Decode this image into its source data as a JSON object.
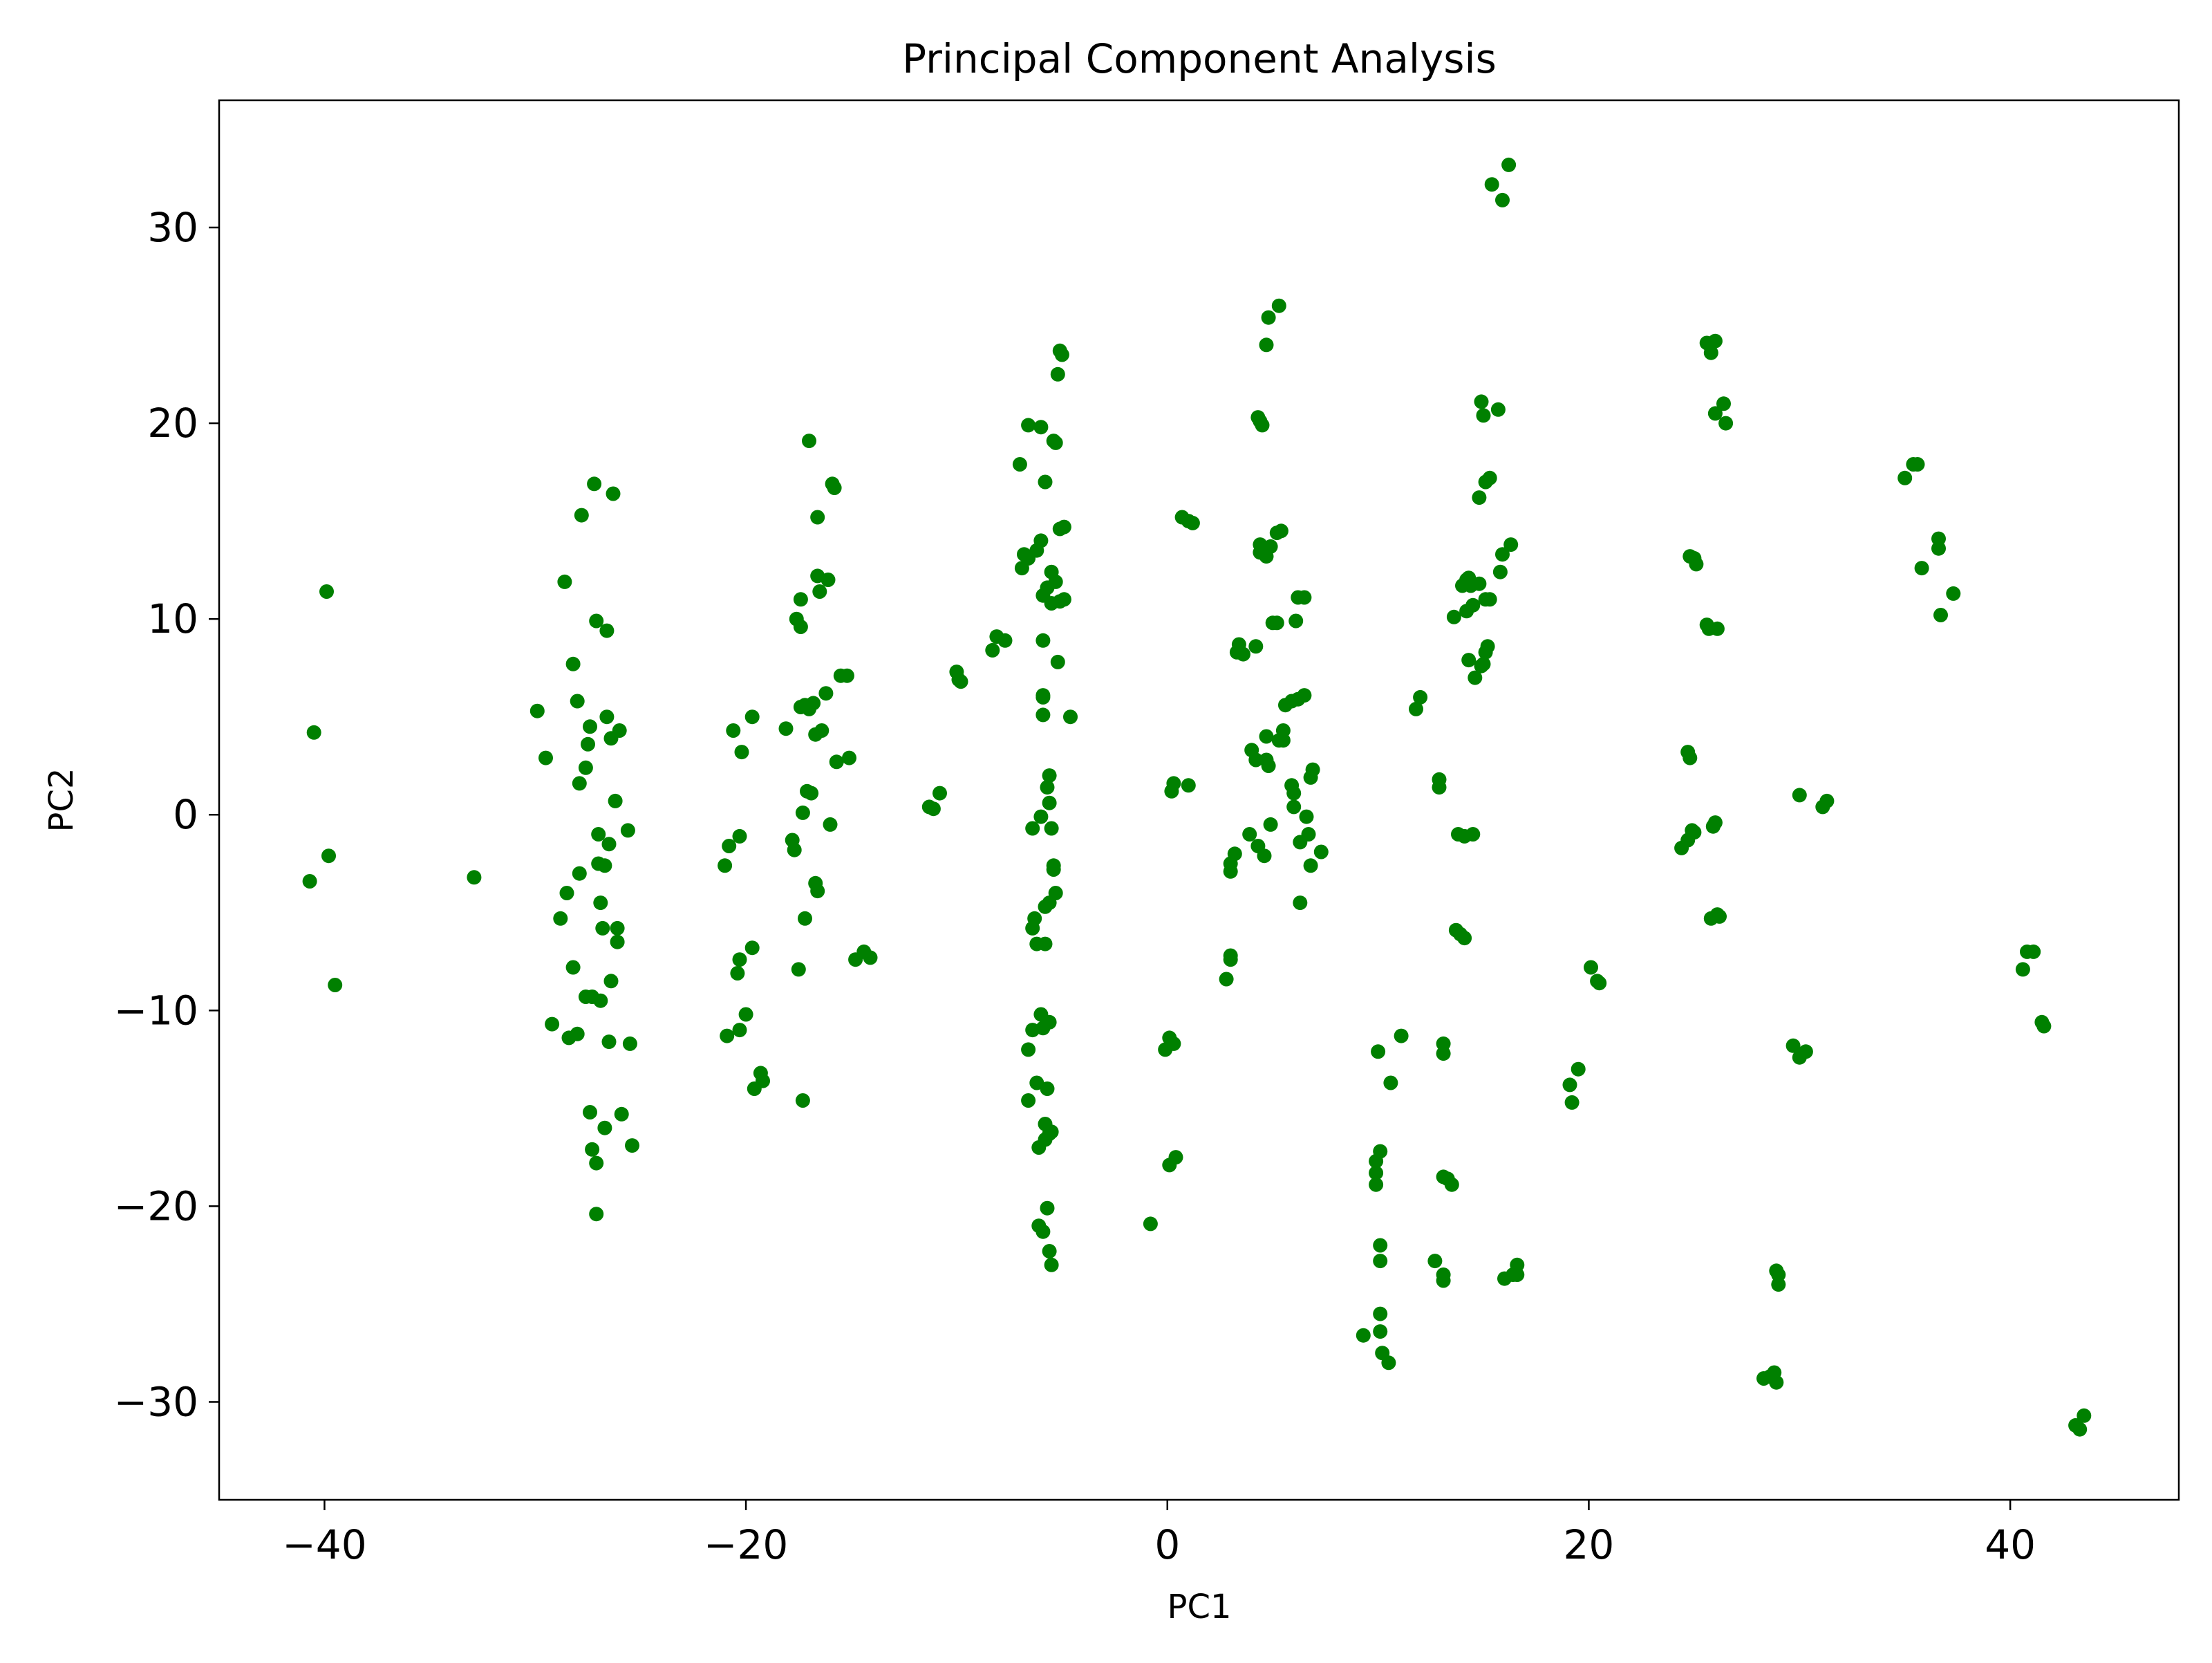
{
  "chart_data": {
    "type": "scatter",
    "title": "Principal Component Analysis",
    "xlabel": "PC1",
    "ylabel": "PC2",
    "xlim": [
      -45,
      48
    ],
    "ylim": [
      -35,
      36.5
    ],
    "xticks": [
      -40,
      -20,
      0,
      20,
      40
    ],
    "xtick_labels": [
      "−40",
      "−20",
      "0",
      "20",
      "40"
    ],
    "yticks": [
      -30,
      -20,
      -10,
      0,
      10,
      20,
      30
    ],
    "ytick_labels": [
      "−30",
      "−20",
      "−10",
      "0",
      "10",
      "20",
      "30"
    ],
    "grid": false,
    "legend": false,
    "marker_color": "#008000",
    "points": [
      [
        -40.7,
        -3.4
      ],
      [
        -40.5,
        4.2
      ],
      [
        -39.9,
        11.4
      ],
      [
        -39.8,
        -2.1
      ],
      [
        -39.5,
        -8.7
      ],
      [
        -32.9,
        -3.2
      ],
      [
        -29.9,
        5.3
      ],
      [
        -29.5,
        2.9
      ],
      [
        -29.2,
        -10.7
      ],
      [
        -28.8,
        -5.3
      ],
      [
        -28.6,
        11.9
      ],
      [
        -28.5,
        -4.0
      ],
      [
        -28.4,
        -11.4
      ],
      [
        -28.2,
        -7.8
      ],
      [
        -28.2,
        7.7
      ],
      [
        -28.0,
        -11.2
      ],
      [
        -28.0,
        5.8
      ],
      [
        -27.9,
        1.6
      ],
      [
        -27.9,
        -3.0
      ],
      [
        -27.8,
        15.3
      ],
      [
        -27.6,
        -9.3
      ],
      [
        -27.6,
        2.4
      ],
      [
        -27.5,
        3.6
      ],
      [
        -27.4,
        -15.2
      ],
      [
        -27.4,
        4.5
      ],
      [
        -27.3,
        -17.1
      ],
      [
        -27.3,
        -9.3
      ],
      [
        -27.2,
        16.9
      ],
      [
        -27.1,
        -17.8
      ],
      [
        -27.1,
        -20.4
      ],
      [
        -27.1,
        9.9
      ],
      [
        -27.0,
        -1.0
      ],
      [
        -27.0,
        -2.5
      ],
      [
        -26.9,
        -4.5
      ],
      [
        -26.9,
        -9.5
      ],
      [
        -26.8,
        -5.8
      ],
      [
        -26.7,
        -2.6
      ],
      [
        -26.7,
        -16.0
      ],
      [
        -26.6,
        9.4
      ],
      [
        -26.6,
        5.0
      ],
      [
        -26.5,
        -11.6
      ],
      [
        -26.5,
        -1.5
      ],
      [
        -26.4,
        -8.5
      ],
      [
        -26.4,
        3.9
      ],
      [
        -26.3,
        16.4
      ],
      [
        -26.2,
        0.7
      ],
      [
        -26.1,
        -5.8
      ],
      [
        -26.1,
        -6.5
      ],
      [
        -26.0,
        4.3
      ],
      [
        -25.9,
        -15.3
      ],
      [
        -25.6,
        -0.8
      ],
      [
        -25.5,
        -11.7
      ],
      [
        -25.4,
        -16.9
      ],
      [
        -21.0,
        -2.6
      ],
      [
        -20.9,
        -11.3
      ],
      [
        -20.8,
        -1.6
      ],
      [
        -20.6,
        4.3
      ],
      [
        -20.4,
        -8.1
      ],
      [
        -20.3,
        -11.0
      ],
      [
        -20.3,
        -7.4
      ],
      [
        -20.3,
        -1.1
      ],
      [
        -20.2,
        3.2
      ],
      [
        -20.0,
        -10.2
      ],
      [
        -19.7,
        -6.8
      ],
      [
        -19.7,
        5.0
      ],
      [
        -19.6,
        -14.0
      ],
      [
        -19.3,
        -13.2
      ],
      [
        -19.2,
        -13.6
      ],
      [
        -18.1,
        4.4
      ],
      [
        -17.8,
        -1.3
      ],
      [
        -17.7,
        -1.8
      ],
      [
        -17.6,
        10.0
      ],
      [
        -17.5,
        -7.9
      ],
      [
        -17.4,
        11.0
      ],
      [
        -17.4,
        9.6
      ],
      [
        -17.4,
        5.5
      ],
      [
        -17.3,
        0.1
      ],
      [
        -17.3,
        -14.6
      ],
      [
        -17.2,
        -5.3
      ],
      [
        -17.2,
        5.6
      ],
      [
        -17.1,
        1.2
      ],
      [
        -17.0,
        5.4
      ],
      [
        -17.0,
        19.1
      ],
      [
        -16.9,
        1.1
      ],
      [
        -16.8,
        5.7
      ],
      [
        -16.7,
        -3.5
      ],
      [
        -16.7,
        4.1
      ],
      [
        -16.6,
        12.2
      ],
      [
        -16.6,
        -3.9
      ],
      [
        -16.6,
        15.2
      ],
      [
        -16.5,
        11.4
      ],
      [
        -16.4,
        4.3
      ],
      [
        -16.2,
        6.2
      ],
      [
        -16.1,
        12.0
      ],
      [
        -16.0,
        -0.5
      ],
      [
        -15.9,
        16.9
      ],
      [
        -15.8,
        16.7
      ],
      [
        -15.7,
        2.7
      ],
      [
        -15.5,
        7.1
      ],
      [
        -15.2,
        7.1
      ],
      [
        -15.1,
        2.9
      ],
      [
        -14.8,
        -7.4
      ],
      [
        -14.4,
        -7.0
      ],
      [
        -14.1,
        -7.3
      ],
      [
        -11.3,
        0.4
      ],
      [
        -11.1,
        0.3
      ],
      [
        -10.8,
        1.1
      ],
      [
        -10.0,
        7.3
      ],
      [
        -9.9,
        6.9
      ],
      [
        -9.8,
        6.8
      ],
      [
        -8.3,
        8.4
      ],
      [
        -8.1,
        9.1
      ],
      [
        -7.7,
        8.9
      ],
      [
        -7.0,
        17.9
      ],
      [
        -6.9,
        12.6
      ],
      [
        -6.8,
        13.3
      ],
      [
        -6.6,
        13.1
      ],
      [
        -6.6,
        -12.0
      ],
      [
        -6.6,
        -14.6
      ],
      [
        -6.6,
        19.9
      ],
      [
        -6.4,
        -11.0
      ],
      [
        -6.4,
        -5.8
      ],
      [
        -6.4,
        -0.7
      ],
      [
        -6.3,
        -5.3
      ],
      [
        -6.2,
        -6.6
      ],
      [
        -6.2,
        13.5
      ],
      [
        -6.2,
        -13.7
      ],
      [
        -6.1,
        -21.0
      ],
      [
        -6.1,
        -17.0
      ],
      [
        -6.0,
        19.8
      ],
      [
        -6.0,
        -10.2
      ],
      [
        -6.0,
        14.0
      ],
      [
        -6.0,
        -0.1
      ],
      [
        -5.9,
        6.1
      ],
      [
        -5.9,
        11.2
      ],
      [
        -5.9,
        -21.3
      ],
      [
        -5.9,
        8.9
      ],
      [
        -5.9,
        6.0
      ],
      [
        -5.9,
        -10.9
      ],
      [
        -5.9,
        5.1
      ],
      [
        -5.8,
        -4.7
      ],
      [
        -5.8,
        -16.6
      ],
      [
        -5.8,
        -6.6
      ],
      [
        -5.8,
        17.0
      ],
      [
        -5.8,
        -15.8
      ],
      [
        -5.7,
        11.6
      ],
      [
        -5.7,
        -14.0
      ],
      [
        -5.7,
        1.4
      ],
      [
        -5.7,
        -20.1
      ],
      [
        -5.6,
        -10.6
      ],
      [
        -5.6,
        -4.5
      ],
      [
        -5.6,
        -16.3
      ],
      [
        -5.6,
        2.0
      ],
      [
        -5.6,
        0.6
      ],
      [
        -5.6,
        -22.3
      ],
      [
        -5.5,
        -16.2
      ],
      [
        -5.5,
        12.4
      ],
      [
        -5.5,
        -0.7
      ],
      [
        -5.5,
        10.8
      ],
      [
        -5.5,
        -23.0
      ],
      [
        -5.4,
        -2.6
      ],
      [
        -5.4,
        19.1
      ],
      [
        -5.4,
        -2.8
      ],
      [
        -5.3,
        19.0
      ],
      [
        -5.3,
        11.9
      ],
      [
        -5.3,
        -4.0
      ],
      [
        -5.2,
        7.8
      ],
      [
        -5.2,
        22.5
      ],
      [
        -5.1,
        10.9
      ],
      [
        -5.1,
        23.7
      ],
      [
        -5.1,
        14.6
      ],
      [
        -5.0,
        23.5
      ],
      [
        -4.9,
        14.7
      ],
      [
        -4.9,
        11.0
      ],
      [
        -4.6,
        5.0
      ],
      [
        -0.8,
        -20.9
      ],
      [
        -0.1,
        -12.0
      ],
      [
        0.1,
        -11.4
      ],
      [
        0.1,
        -17.9
      ],
      [
        0.2,
        1.2
      ],
      [
        0.3,
        -11.7
      ],
      [
        0.3,
        1.6
      ],
      [
        0.4,
        -17.5
      ],
      [
        0.7,
        15.2
      ],
      [
        1.0,
        1.5
      ],
      [
        1.0,
        15.0
      ],
      [
        1.2,
        14.9
      ],
      [
        2.8,
        -8.4
      ],
      [
        3.0,
        -2.5
      ],
      [
        3.0,
        -2.9
      ],
      [
        3.0,
        -7.2
      ],
      [
        3.0,
        -7.4
      ],
      [
        3.2,
        -2.0
      ],
      [
        3.3,
        8.3
      ],
      [
        3.4,
        8.7
      ],
      [
        3.6,
        8.2
      ],
      [
        3.9,
        -1.0
      ],
      [
        4.0,
        3.3
      ],
      [
        4.2,
        8.6
      ],
      [
        4.2,
        2.8
      ],
      [
        4.3,
        -1.6
      ],
      [
        4.3,
        20.3
      ],
      [
        4.4,
        13.4
      ],
      [
        4.4,
        13.8
      ],
      [
        4.4,
        20.1
      ],
      [
        4.5,
        19.9
      ],
      [
        4.6,
        -2.1
      ],
      [
        4.7,
        4.0
      ],
      [
        4.7,
        2.8
      ],
      [
        4.7,
        24.0
      ],
      [
        4.7,
        13.2
      ],
      [
        4.8,
        25.4
      ],
      [
        4.8,
        2.5
      ],
      [
        4.9,
        13.7
      ],
      [
        4.9,
        -0.5
      ],
      [
        5.0,
        9.8
      ],
      [
        5.2,
        9.8
      ],
      [
        5.2,
        14.4
      ],
      [
        5.3,
        3.8
      ],
      [
        5.3,
        26.0
      ],
      [
        5.4,
        14.5
      ],
      [
        5.5,
        3.8
      ],
      [
        5.5,
        4.3
      ],
      [
        5.6,
        5.6
      ],
      [
        5.9,
        1.5
      ],
      [
        5.9,
        5.8
      ],
      [
        6.0,
        1.1
      ],
      [
        6.0,
        0.4
      ],
      [
        6.1,
        9.9
      ],
      [
        6.2,
        11.1
      ],
      [
        6.2,
        5.9
      ],
      [
        6.3,
        -1.4
      ],
      [
        6.3,
        -4.5
      ],
      [
        6.5,
        6.1
      ],
      [
        6.5,
        11.1
      ],
      [
        6.6,
        -0.1
      ],
      [
        6.7,
        -1.0
      ],
      [
        6.8,
        1.9
      ],
      [
        6.8,
        -2.6
      ],
      [
        6.9,
        2.3
      ],
      [
        7.3,
        -1.9
      ],
      [
        9.3,
        -26.6
      ],
      [
        9.9,
        -18.3
      ],
      [
        9.9,
        -17.7
      ],
      [
        9.9,
        -18.9
      ],
      [
        10.0,
        -12.1
      ],
      [
        10.1,
        -17.2
      ],
      [
        10.1,
        -25.5
      ],
      [
        10.1,
        -22.8
      ],
      [
        10.1,
        -26.4
      ],
      [
        10.1,
        -22.0
      ],
      [
        10.2,
        -27.5
      ],
      [
        10.5,
        -28.0
      ],
      [
        10.6,
        -13.7
      ],
      [
        11.1,
        -11.3
      ],
      [
        11.8,
        5.4
      ],
      [
        12.0,
        6.0
      ],
      [
        12.7,
        -22.8
      ],
      [
        12.9,
        1.8
      ],
      [
        12.9,
        1.4
      ],
      [
        13.1,
        -23.5
      ],
      [
        13.1,
        -23.8
      ],
      [
        13.1,
        -12.2
      ],
      [
        13.1,
        -11.7
      ],
      [
        13.1,
        -18.5
      ],
      [
        13.3,
        -18.6
      ],
      [
        13.5,
        -18.9
      ],
      [
        13.6,
        10.1
      ],
      [
        13.7,
        -5.9
      ],
      [
        13.8,
        -1.0
      ],
      [
        13.9,
        -6.1
      ],
      [
        14.0,
        11.7
      ],
      [
        14.1,
        -6.3
      ],
      [
        14.1,
        -1.1
      ],
      [
        14.2,
        10.4
      ],
      [
        14.2,
        12.0
      ],
      [
        14.3,
        7.9
      ],
      [
        14.3,
        12.1
      ],
      [
        14.4,
        11.7
      ],
      [
        14.5,
        10.7
      ],
      [
        14.5,
        -1.0
      ],
      [
        14.6,
        7.0
      ],
      [
        14.8,
        16.2
      ],
      [
        14.8,
        11.8
      ],
      [
        14.9,
        7.6
      ],
      [
        14.9,
        21.1
      ],
      [
        15.0,
        7.7
      ],
      [
        15.0,
        20.4
      ],
      [
        15.1,
        8.3
      ],
      [
        15.1,
        11.0
      ],
      [
        15.1,
        17.0
      ],
      [
        15.2,
        8.6
      ],
      [
        15.3,
        11.0
      ],
      [
        15.3,
        17.2
      ],
      [
        15.4,
        32.2
      ],
      [
        15.7,
        20.7
      ],
      [
        15.8,
        12.4
      ],
      [
        15.9,
        31.4
      ],
      [
        15.9,
        13.3
      ],
      [
        16.0,
        -23.7
      ],
      [
        16.2,
        33.2
      ],
      [
        16.3,
        13.8
      ],
      [
        16.4,
        -23.5
      ],
      [
        16.6,
        -23.0
      ],
      [
        16.6,
        -23.5
      ],
      [
        19.1,
        -13.8
      ],
      [
        19.2,
        -14.7
      ],
      [
        19.5,
        -13.0
      ],
      [
        20.1,
        -7.8
      ],
      [
        20.4,
        -8.5
      ],
      [
        20.5,
        -8.6
      ],
      [
        24.4,
        -1.7
      ],
      [
        24.7,
        3.2
      ],
      [
        24.7,
        -1.3
      ],
      [
        24.8,
        2.9
      ],
      [
        24.8,
        13.2
      ],
      [
        24.9,
        -0.8
      ],
      [
        25.0,
        13.1
      ],
      [
        25.0,
        -0.9
      ],
      [
        25.1,
        12.8
      ],
      [
        25.6,
        24.1
      ],
      [
        25.6,
        9.7
      ],
      [
        25.7,
        9.5
      ],
      [
        25.8,
        23.6
      ],
      [
        25.8,
        -5.3
      ],
      [
        25.9,
        -0.6
      ],
      [
        26.0,
        24.2
      ],
      [
        26.0,
        20.5
      ],
      [
        26.0,
        -0.4
      ],
      [
        26.1,
        -5.1
      ],
      [
        26.1,
        9.5
      ],
      [
        26.2,
        -5.2
      ],
      [
        26.4,
        21.0
      ],
      [
        26.5,
        20.0
      ],
      [
        28.3,
        -28.8
      ],
      [
        28.6,
        -28.7
      ],
      [
        28.8,
        -28.5
      ],
      [
        28.9,
        -29.0
      ],
      [
        28.9,
        -23.3
      ],
      [
        29.0,
        -23.5
      ],
      [
        29.0,
        -24.0
      ],
      [
        29.7,
        -11.8
      ],
      [
        30.0,
        -12.4
      ],
      [
        30.0,
        1.0
      ],
      [
        30.3,
        -12.1
      ],
      [
        31.1,
        0.4
      ],
      [
        31.3,
        0.7
      ],
      [
        35.0,
        17.2
      ],
      [
        35.4,
        17.9
      ],
      [
        35.6,
        17.9
      ],
      [
        35.8,
        12.6
      ],
      [
        36.6,
        14.1
      ],
      [
        36.6,
        13.6
      ],
      [
        36.7,
        10.2
      ],
      [
        37.3,
        11.3
      ],
      [
        40.6,
        -7.9
      ],
      [
        40.8,
        -7.0
      ],
      [
        41.1,
        -7.0
      ],
      [
        41.5,
        -10.6
      ],
      [
        41.6,
        -10.8
      ],
      [
        43.1,
        -31.2
      ],
      [
        43.3,
        -31.4
      ],
      [
        43.5,
        -30.7
      ]
    ]
  }
}
